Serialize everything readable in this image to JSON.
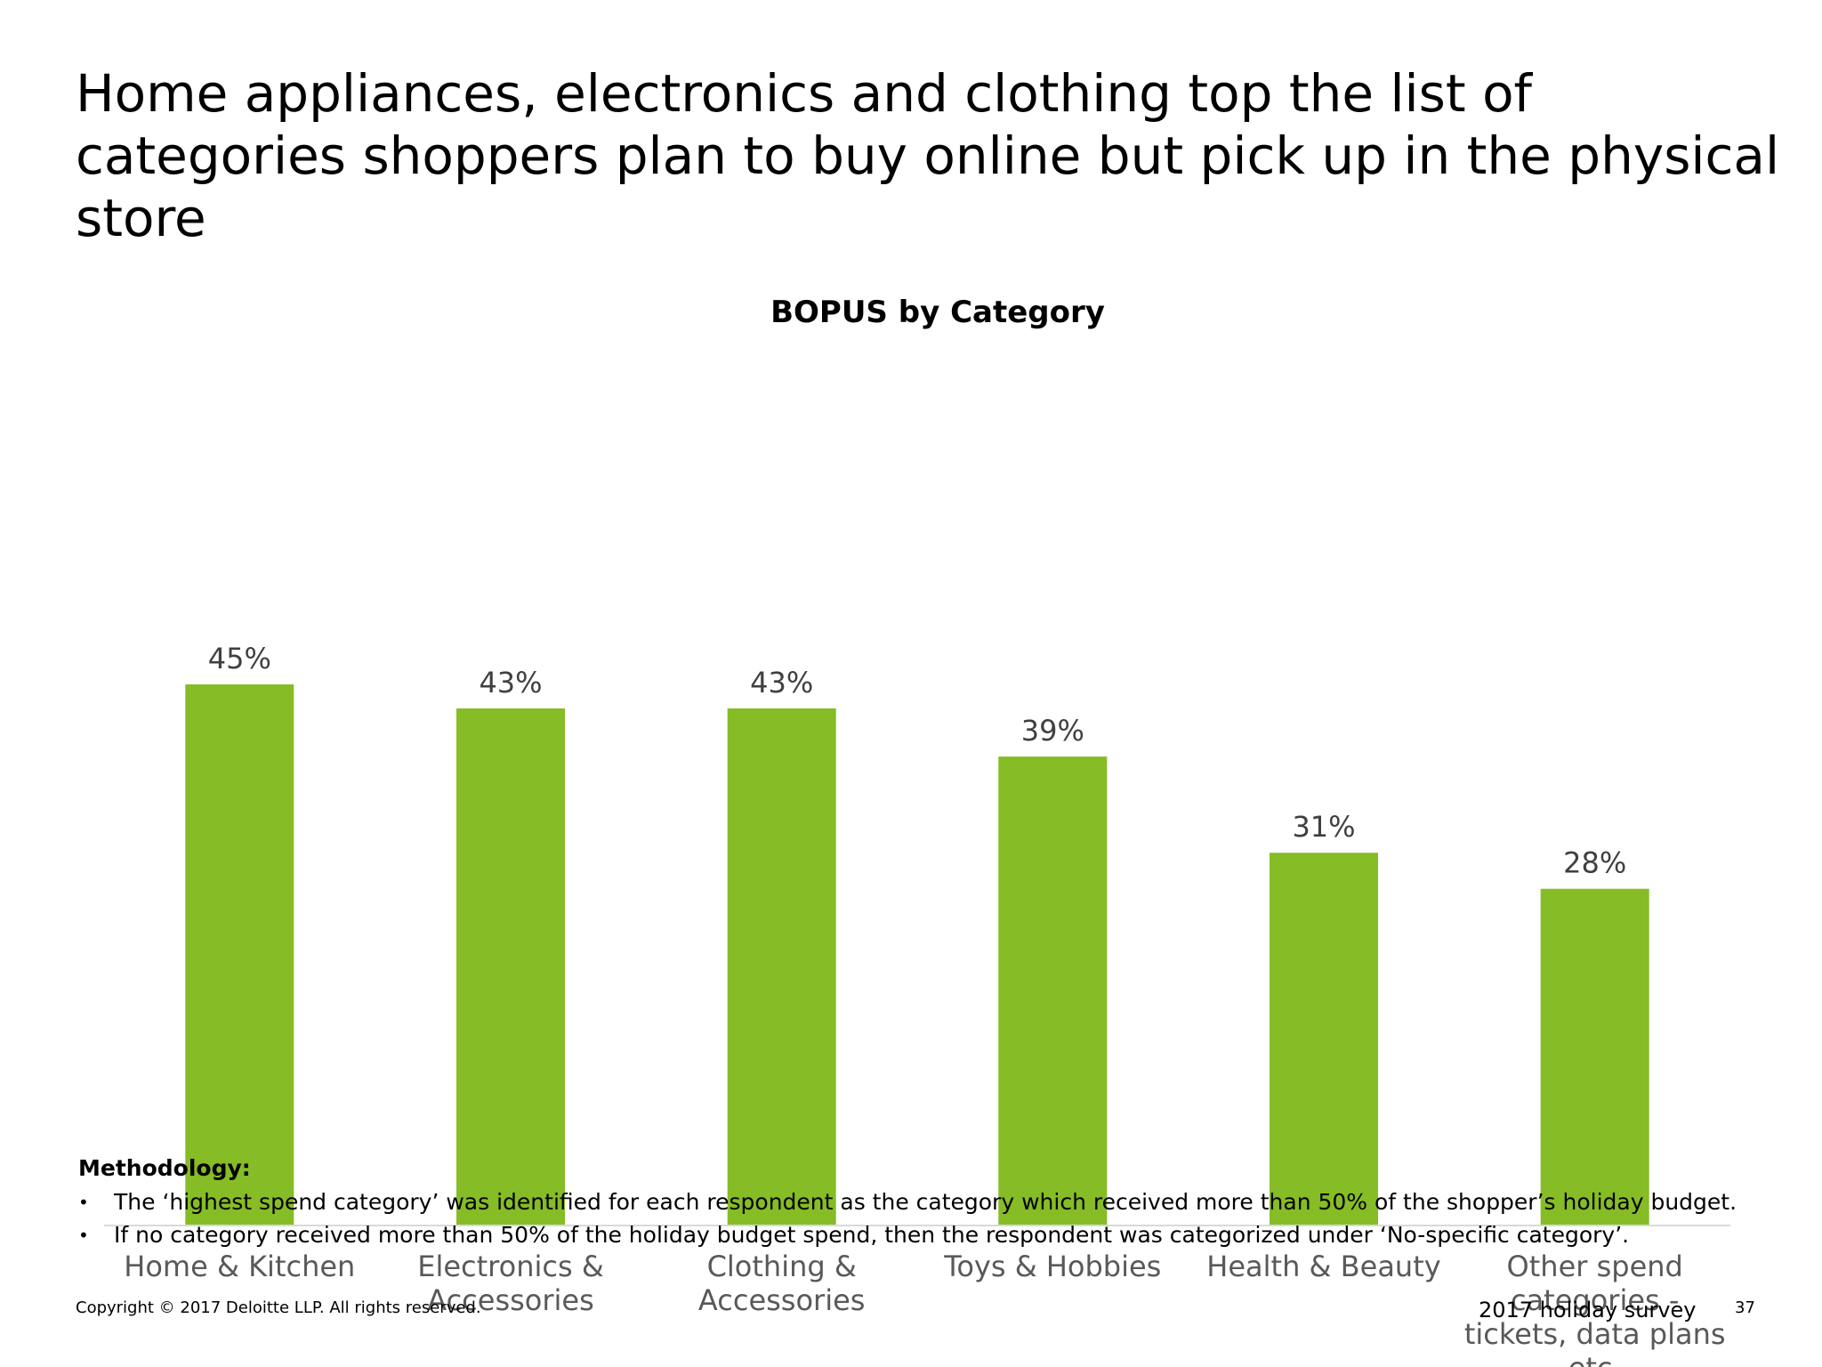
{
  "slide": {
    "title": "Home appliances, electronics and clothing top the list of categories shoppers plan to buy online but pick up in the physical store"
  },
  "chart_data": {
    "type": "bar",
    "title": "BOPUS by Category",
    "xlabel": "",
    "ylabel": "",
    "categories": [
      [
        "Home & Kitchen"
      ],
      [
        "Electronics &",
        "Accessories"
      ],
      [
        "Clothing &",
        "Accessories"
      ],
      [
        "Toys & Hobbies"
      ],
      [
        "Health & Beauty"
      ],
      [
        "Other spend",
        "categories -",
        "tickets, data plans",
        "etc."
      ]
    ],
    "values": [
      45,
      43,
      43,
      39,
      31,
      28
    ],
    "data_labels": [
      "45%",
      "43%",
      "43%",
      "39%",
      "31%",
      "28%"
    ],
    "ylim": [
      0,
      45
    ],
    "grid": false,
    "legend": "none",
    "bar_color": "#86BC25",
    "axis_color": "#D9D9D9"
  },
  "methodology": {
    "heading": "Methodology:",
    "bullet_symbol": "•",
    "items": [
      "The ‘highest spend category’ was identified for each respondent as the category which received more than 50% of the shopper’s holiday budget.",
      "If no category received more than 50% of the holiday budget spend, then the respondent was categorized under ‘No-specific category’."
    ]
  },
  "footer": {
    "copyright": "Copyright © 2017 Deloitte LLP. All rights reserved.",
    "survey": "2017 holiday survey",
    "page_number": "37"
  }
}
